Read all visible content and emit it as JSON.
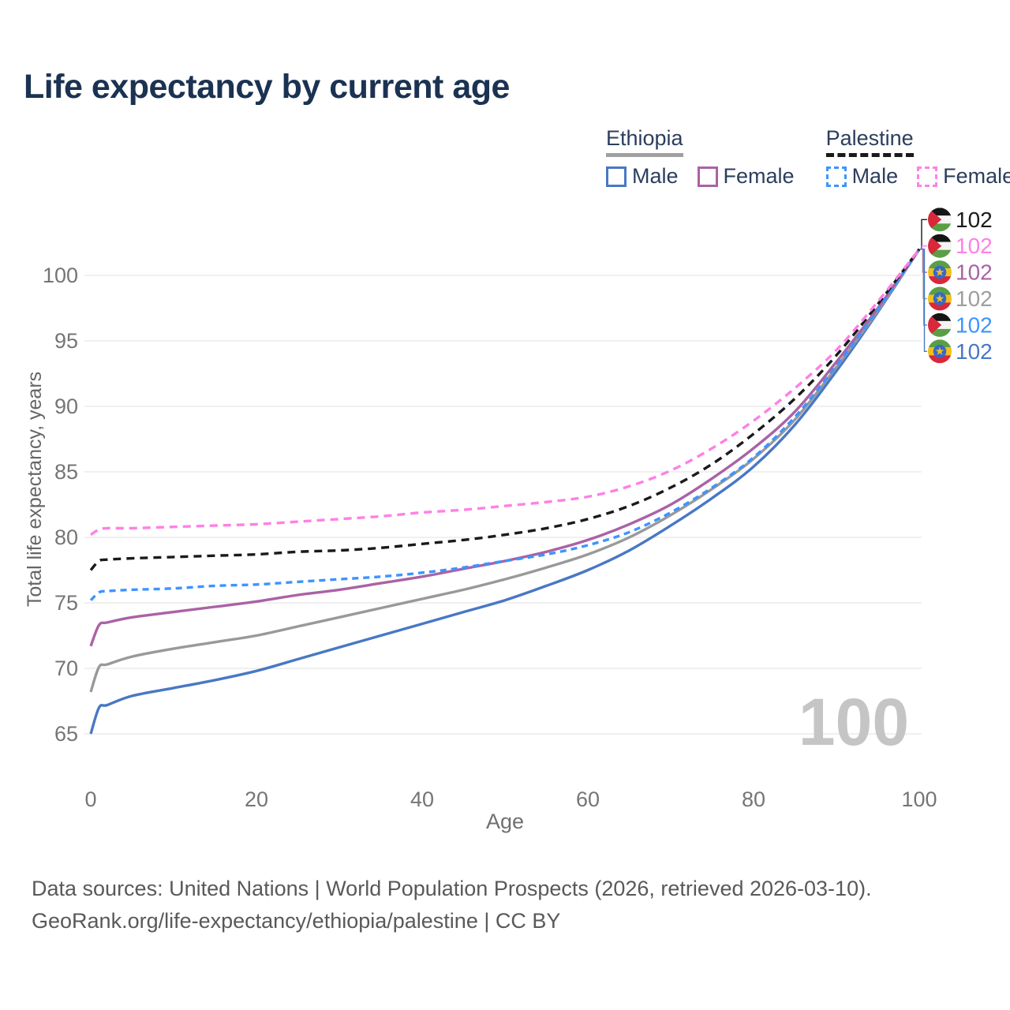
{
  "title": "Life expectancy by current age",
  "legend": {
    "groups": [
      {
        "label": "Ethiopia",
        "line_style": "solid",
        "underline_color": "#a0a0a0",
        "items": [
          {
            "label": "Male",
            "color": "#4878c4",
            "dashed": false
          },
          {
            "label": "Female",
            "color": "#aa62a5",
            "dashed": false
          }
        ]
      },
      {
        "label": "Palestine",
        "line_style": "dashed",
        "underline_color": "#1a1a1a",
        "items": [
          {
            "label": "Male",
            "color": "#3d94ff",
            "dashed": true
          },
          {
            "label": "Female",
            "color": "#ff80e5",
            "dashed": true
          }
        ]
      }
    ]
  },
  "chart_data": {
    "type": "line",
    "title": "Life expectancy by current age",
    "xlabel": "Age",
    "ylabel": "Total life expectancy, years",
    "xlim": [
      0,
      100
    ],
    "ylim": [
      63,
      103
    ],
    "xticks": [
      0,
      20,
      40,
      60,
      80,
      100
    ],
    "yticks": [
      65,
      70,
      75,
      80,
      85,
      90,
      95,
      100
    ],
    "grid": "horizontal",
    "legend_position": "top-right",
    "watermark": "100",
    "x": [
      0,
      1,
      2,
      5,
      10,
      15,
      20,
      25,
      30,
      35,
      40,
      45,
      50,
      55,
      60,
      65,
      70,
      75,
      80,
      85,
      90,
      95,
      100
    ],
    "series": [
      {
        "id": "ethiopia-male",
        "name": "Ethiopia Male",
        "country": "Ethiopia",
        "sex": "Male",
        "color": "#4878c4",
        "dash": null,
        "values": [
          65.0,
          67.0,
          67.2,
          67.9,
          68.5,
          69.1,
          69.8,
          70.7,
          71.6,
          72.5,
          73.4,
          74.3,
          75.2,
          76.3,
          77.5,
          79.0,
          80.9,
          83.0,
          85.4,
          88.6,
          92.7,
          97.2,
          102
        ]
      },
      {
        "id": "ethiopia-all",
        "name": "Ethiopia Both sexes",
        "country": "Ethiopia",
        "sex": "Both sexes",
        "color": "#999999",
        "dash": null,
        "values": [
          68.2,
          70.1,
          70.3,
          70.9,
          71.5,
          72.0,
          72.5,
          73.2,
          73.9,
          74.6,
          75.3,
          76.0,
          76.8,
          77.7,
          78.7,
          80.0,
          81.7,
          83.7,
          86.0,
          89.0,
          93.0,
          97.3,
          102
        ]
      },
      {
        "id": "ethiopia-female",
        "name": "Ethiopia Female",
        "country": "Ethiopia",
        "sex": "Female",
        "color": "#aa62a5",
        "dash": null,
        "values": [
          71.7,
          73.3,
          73.5,
          73.9,
          74.3,
          74.7,
          75.1,
          75.6,
          76.0,
          76.5,
          77.0,
          77.6,
          78.2,
          78.9,
          79.8,
          81.0,
          82.5,
          84.5,
          86.8,
          89.6,
          93.4,
          97.5,
          102
        ]
      },
      {
        "id": "palestine-male",
        "name": "Palestine Male",
        "country": "Palestine",
        "sex": "Male",
        "color": "#3d94ff",
        "dash": "8 6",
        "values": [
          75.2,
          75.8,
          75.9,
          76.0,
          76.1,
          76.3,
          76.4,
          76.6,
          76.8,
          77.0,
          77.3,
          77.7,
          78.2,
          78.7,
          79.4,
          80.4,
          81.9,
          83.8,
          86.1,
          89.2,
          93.1,
          97.4,
          102
        ]
      },
      {
        "id": "palestine-all",
        "name": "Palestine Both sexes",
        "country": "Palestine",
        "sex": "Both sexes",
        "color": "#1a1a1a",
        "dash": "10 7",
        "values": [
          77.5,
          78.2,
          78.3,
          78.4,
          78.5,
          78.6,
          78.7,
          78.9,
          79.0,
          79.2,
          79.5,
          79.8,
          80.2,
          80.7,
          81.4,
          82.4,
          83.8,
          85.6,
          87.9,
          90.6,
          93.9,
          97.8,
          102
        ]
      },
      {
        "id": "palestine-female",
        "name": "Palestine Female",
        "country": "Palestine",
        "sex": "Female",
        "color": "#ff80e5",
        "dash": "10 7",
        "values": [
          80.2,
          80.6,
          80.7,
          80.7,
          80.8,
          80.9,
          81.0,
          81.2,
          81.4,
          81.6,
          81.9,
          82.1,
          82.4,
          82.7,
          83.1,
          83.9,
          85.1,
          86.8,
          88.9,
          91.4,
          94.3,
          98.0,
          102
        ]
      }
    ],
    "end_labels": [
      {
        "series": "palestine-all",
        "flag": "palestine",
        "text": "102",
        "color": "#1a1a1a"
      },
      {
        "series": "palestine-female",
        "flag": "palestine",
        "text": "102",
        "color": "#ff80e5"
      },
      {
        "series": "ethiopia-female",
        "flag": "ethiopia",
        "text": "102",
        "color": "#aa62a5"
      },
      {
        "series": "ethiopia-all",
        "flag": "ethiopia",
        "text": "102",
        "color": "#9e9e9e"
      },
      {
        "series": "palestine-male",
        "flag": "palestine",
        "text": "102",
        "color": "#3d94ff"
      },
      {
        "series": "ethiopia-male",
        "flag": "ethiopia",
        "text": "102",
        "color": "#4878c4"
      }
    ]
  },
  "footer": {
    "line1": "Data sources: United Nations | World Population Prospects (2026, retrieved 2026-03-10).",
    "line2": "GeoRank.org/life-expectancy/ethiopia/palestine | CC BY"
  }
}
